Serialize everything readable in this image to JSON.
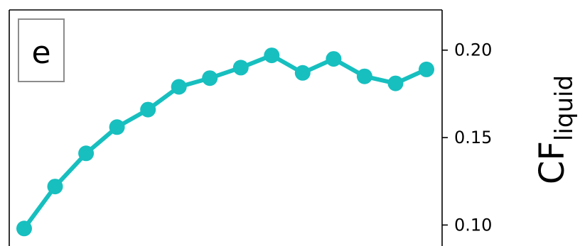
{
  "chart_data": {
    "type": "line",
    "panel_label": "e",
    "ylabel": "CF",
    "ylabel_subscript": "liquid",
    "ylim": [
      0.088,
      0.223
    ],
    "yticks": [
      0.1,
      0.15,
      0.2
    ],
    "ytick_labels": [
      "0.10",
      "0.15",
      "0.20"
    ],
    "yaxis_position": "right",
    "grid": false,
    "series": [
      {
        "color": "#17bfbf",
        "x": [
          1,
          2,
          3,
          4,
          5,
          6,
          7,
          8,
          9,
          10,
          11,
          12,
          13,
          14
        ],
        "values": [
          0.098,
          0.122,
          0.141,
          0.156,
          0.166,
          0.179,
          0.184,
          0.19,
          0.197,
          0.187,
          0.195,
          0.185,
          0.181,
          0.189
        ]
      }
    ]
  }
}
